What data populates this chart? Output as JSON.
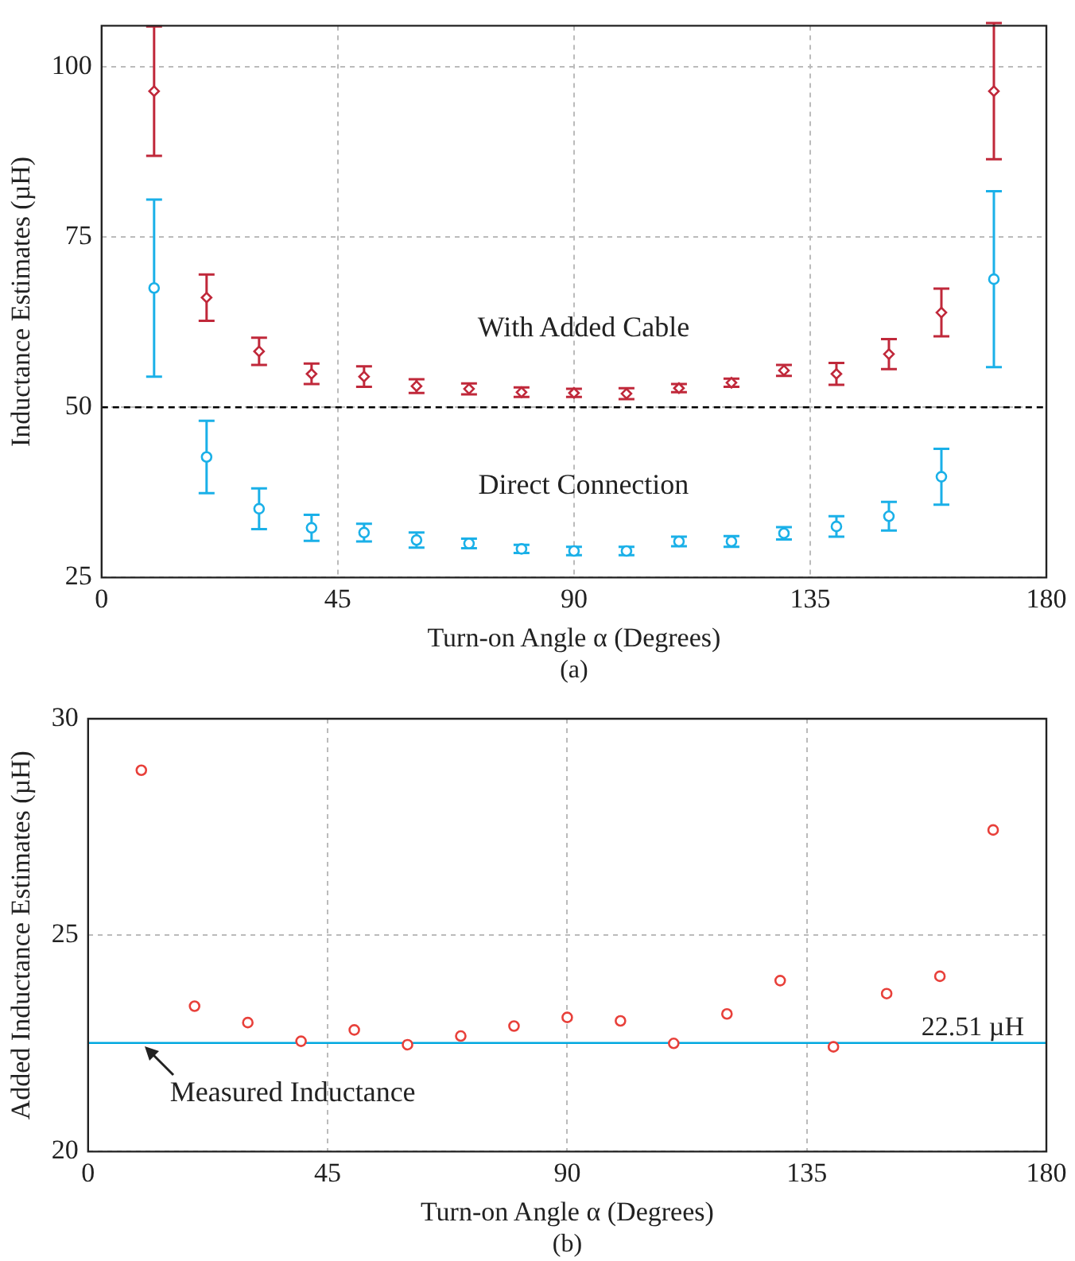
{
  "chart_data": [
    {
      "type": "scatter",
      "xlabel": "Turn-on Angle α (Degrees)",
      "ylabel": "Inductance Estimates (µH)",
      "annotations": [
        "(a)"
      ],
      "xlim": [
        0,
        180
      ],
      "xticks": [
        0,
        45,
        90,
        135,
        180
      ],
      "ylim": [
        25,
        106
      ],
      "yticks": [
        25,
        50,
        75,
        100
      ],
      "grid": true,
      "legend": false,
      "x": [
        10,
        20,
        30,
        40,
        50,
        60,
        70,
        80,
        90,
        100,
        110,
        120,
        130,
        140,
        150,
        160,
        170
      ],
      "series": [
        {
          "name": "With Added Cable",
          "color": "#c0283a",
          "marker": "diamond",
          "values": [
            96.4,
            66.1,
            58.2,
            54.9,
            54.5,
            53.1,
            52.7,
            52.2,
            52.1,
            52.0,
            52.8,
            53.6,
            55.4,
            54.9,
            57.8,
            63.9,
            96.4
          ],
          "errors": [
            9.5,
            3.4,
            2.0,
            1.5,
            1.5,
            1.0,
            0.8,
            0.7,
            0.6,
            0.8,
            0.6,
            0.6,
            0.8,
            1.6,
            2.2,
            3.5,
            10.0
          ]
        },
        {
          "name": "Direct Connection",
          "color": "#1ab0e8",
          "marker": "circle",
          "values": [
            67.5,
            42.7,
            35.1,
            32.3,
            31.6,
            30.5,
            30.0,
            29.2,
            28.9,
            28.9,
            30.3,
            30.3,
            31.5,
            32.5,
            34.0,
            39.8,
            68.8
          ],
          "errors": [
            13.0,
            5.3,
            3.0,
            1.9,
            1.3,
            1.1,
            0.7,
            0.6,
            0.6,
            0.6,
            0.7,
            0.8,
            0.9,
            1.5,
            2.1,
            4.1,
            12.9
          ]
        }
      ],
      "ref_lines": [
        {
          "axis": "y",
          "value": 50,
          "color": "#000000",
          "line_style": "dashed"
        }
      ]
    },
    {
      "type": "scatter",
      "xlabel": "Turn-on Angle α (Degrees)",
      "ylabel": "Added Inductance Estimates (µH)",
      "annotations": [
        {
          "text": "Measured Inductance",
          "x": 10,
          "y": 22.51
        },
        "(b)"
      ],
      "xlim": [
        0,
        180
      ],
      "xticks": [
        0,
        45,
        90,
        135,
        180
      ],
      "ylim": [
        20,
        30
      ],
      "yticks": [
        20,
        25,
        30
      ],
      "grid": true,
      "legend": false,
      "marker": "circle",
      "x": [
        10,
        20,
        30,
        40,
        50,
        60,
        70,
        80,
        90,
        100,
        110,
        120,
        130,
        140,
        150,
        160,
        170
      ],
      "series": [
        {
          "color": "#e8403a",
          "values": [
            28.81,
            23.36,
            22.98,
            22.55,
            22.81,
            22.47,
            22.67,
            22.9,
            23.1,
            23.02,
            22.5,
            23.18,
            23.95,
            22.42,
            23.65,
            24.05,
            27.43
          ]
        }
      ],
      "ref_lines": [
        {
          "axis": "y",
          "value": 22.51,
          "label": "22.51 µH",
          "color": "#00a8e0",
          "line_style": "solid"
        }
      ]
    }
  ]
}
